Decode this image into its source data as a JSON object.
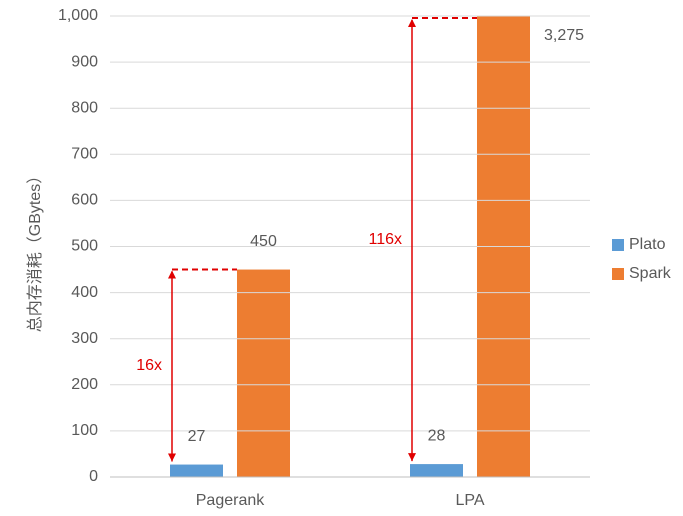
{
  "chart_data": {
    "type": "bar",
    "y_label": "总内存消耗（GBytes）",
    "categories": [
      "Pagerank",
      "LPA"
    ],
    "series": [
      {
        "name": "Plato",
        "color": "#5b9bd5",
        "values": [
          27,
          28
        ]
      },
      {
        "name": "Spark",
        "color": "#ed7d31",
        "values": [
          450,
          3275
        ],
        "value_labels": [
          "450",
          "3,275"
        ]
      }
    ],
    "annotations": [
      "16x",
      "116x"
    ],
    "annotation_color": "#e00000",
    "ylim": [
      0,
      1000
    ],
    "yticks": [
      0,
      100,
      200,
      300,
      400,
      500,
      600,
      700,
      800,
      900,
      {
        "value": 1000,
        "label": "1,000"
      }
    ],
    "grid": true,
    "legend": "right"
  }
}
